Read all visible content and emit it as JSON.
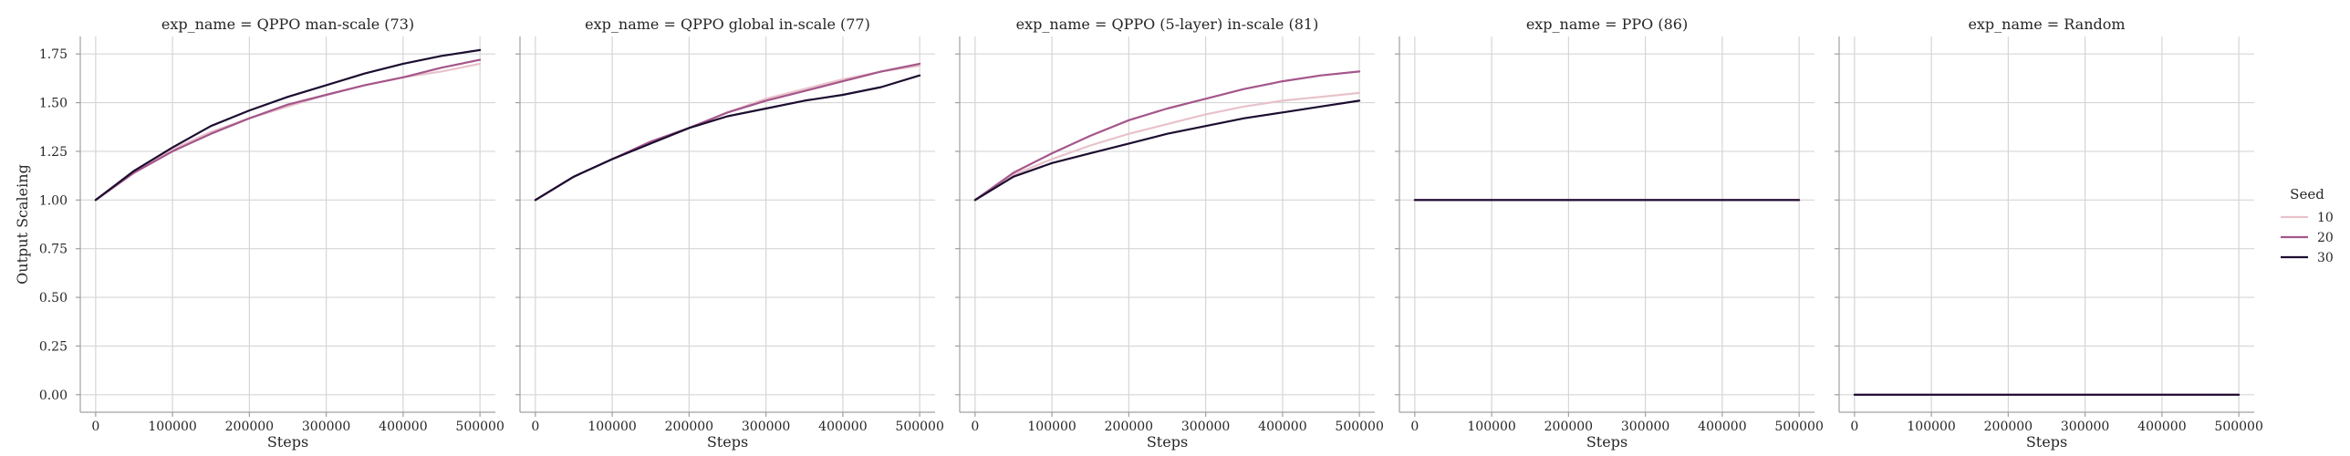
{
  "chart_data": {
    "type": "line",
    "facet_label": "exp_name",
    "xlabel": "Steps",
    "ylabel": "Output Scaleing",
    "xlim": [
      -20000,
      520000
    ],
    "ylim": [
      -0.09,
      1.84
    ],
    "xticks": [
      0,
      100000,
      200000,
      300000,
      400000,
      500000
    ],
    "xtick_labels": [
      "0",
      "100000",
      "200000",
      "300000",
      "400000",
      "500000"
    ],
    "yticks": [
      0.0,
      0.25,
      0.5,
      0.75,
      1.0,
      1.25,
      1.5,
      1.75
    ],
    "ytick_labels": [
      "0.00",
      "0.25",
      "0.50",
      "0.75",
      "1.00",
      "1.25",
      "1.50",
      "1.75"
    ],
    "grid": true,
    "legend": {
      "title": "Seed",
      "placement": "right",
      "entries": [
        {
          "label": "10",
          "color": "#e8c2cb"
        },
        {
          "label": "20",
          "color": "#a4568a"
        },
        {
          "label": "30",
          "color": "#1c0d30"
        }
      ]
    },
    "panels": [
      {
        "title": "exp_name = QPPO man-scale (73)",
        "x": [
          0,
          50000,
          100000,
          150000,
          200000,
          250000,
          300000,
          350000,
          400000,
          450000,
          500000
        ],
        "series": [
          {
            "name": "10",
            "color": "#e8c2cb",
            "values": [
              1.0,
              1.15,
              1.26,
              1.35,
              1.42,
              1.48,
              1.54,
              1.59,
              1.63,
              1.66,
              1.7
            ]
          },
          {
            "name": "20",
            "color": "#a4568a",
            "values": [
              1.0,
              1.14,
              1.25,
              1.34,
              1.42,
              1.49,
              1.54,
              1.59,
              1.63,
              1.68,
              1.72
            ]
          },
          {
            "name": "30",
            "color": "#1c0d30",
            "values": [
              1.0,
              1.15,
              1.27,
              1.38,
              1.46,
              1.53,
              1.59,
              1.65,
              1.7,
              1.74,
              1.77
            ]
          }
        ]
      },
      {
        "title": "exp_name = QPPO global in-scale (77)",
        "x": [
          0,
          50000,
          100000,
          150000,
          200000,
          250000,
          300000,
          350000,
          400000,
          450000,
          500000
        ],
        "series": [
          {
            "name": "10",
            "color": "#e8c2cb",
            "values": [
              1.0,
              1.12,
              1.21,
              1.29,
              1.37,
              1.45,
              1.52,
              1.57,
              1.62,
              1.66,
              1.69
            ]
          },
          {
            "name": "20",
            "color": "#a4568a",
            "values": [
              1.0,
              1.12,
              1.21,
              1.3,
              1.37,
              1.45,
              1.51,
              1.56,
              1.61,
              1.66,
              1.7
            ]
          },
          {
            "name": "30",
            "color": "#1c0d30",
            "values": [
              1.0,
              1.12,
              1.21,
              1.29,
              1.37,
              1.43,
              1.47,
              1.51,
              1.54,
              1.58,
              1.64
            ]
          }
        ]
      },
      {
        "title": "exp_name = QPPO (5-layer) in-scale (81)",
        "x": [
          0,
          50000,
          100000,
          150000,
          200000,
          250000,
          300000,
          350000,
          400000,
          450000,
          500000
        ],
        "series": [
          {
            "name": "10",
            "color": "#e8c2cb",
            "values": [
              1.0,
              1.13,
              1.21,
              1.28,
              1.34,
              1.39,
              1.44,
              1.48,
              1.51,
              1.53,
              1.55
            ]
          },
          {
            "name": "20",
            "color": "#a4568a",
            "values": [
              1.0,
              1.14,
              1.24,
              1.33,
              1.41,
              1.47,
              1.52,
              1.57,
              1.61,
              1.64,
              1.66
            ]
          },
          {
            "name": "30",
            "color": "#1c0d30",
            "values": [
              1.0,
              1.12,
              1.19,
              1.24,
              1.29,
              1.34,
              1.38,
              1.42,
              1.45,
              1.48,
              1.51
            ]
          }
        ]
      },
      {
        "title": "exp_name = PPO (86)",
        "x": [
          0,
          500000
        ],
        "series": [
          {
            "name": "10",
            "color": "#e8c2cb",
            "values": [
              1.0,
              1.0
            ]
          },
          {
            "name": "20",
            "color": "#a4568a",
            "values": [
              1.0,
              1.0
            ]
          },
          {
            "name": "30",
            "color": "#1c0d30",
            "values": [
              1.0,
              1.0
            ]
          }
        ]
      },
      {
        "title": "exp_name = Random",
        "x": [
          0,
          500000
        ],
        "series": [
          {
            "name": "10",
            "color": "#e8c2cb",
            "values": [
              0.0,
              0.0
            ]
          },
          {
            "name": "20",
            "color": "#a4568a",
            "values": [
              0.0,
              0.0
            ]
          },
          {
            "name": "30",
            "color": "#1c0d30",
            "values": [
              0.0,
              0.0
            ]
          }
        ]
      }
    ]
  }
}
